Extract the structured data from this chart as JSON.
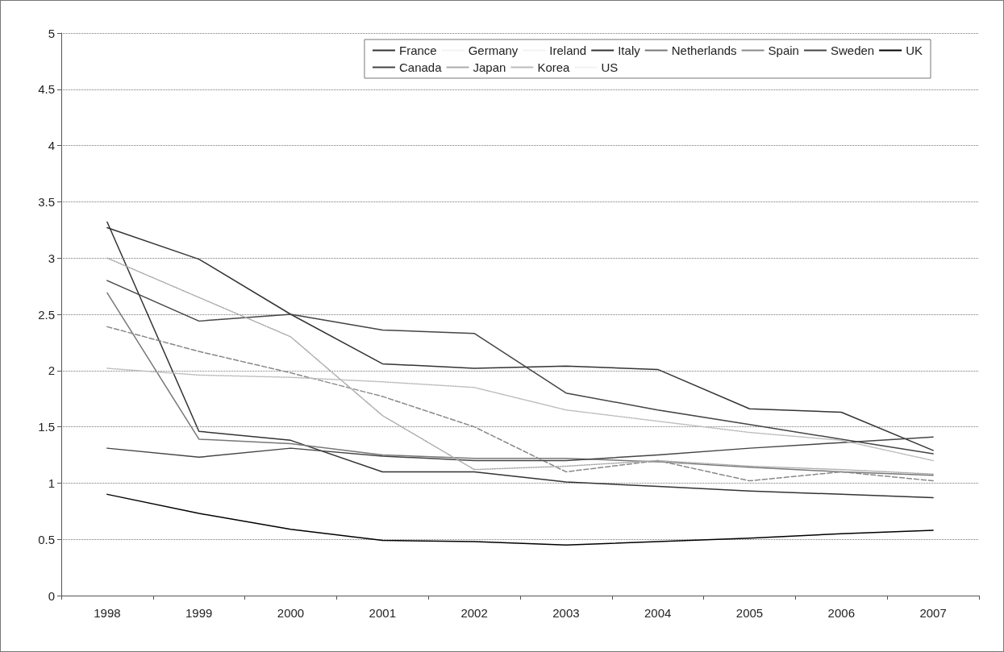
{
  "chart_data": {
    "type": "line",
    "categories": [
      "1998",
      "1999",
      "2000",
      "2001",
      "2002",
      "2003",
      "2004",
      "2005",
      "2006",
      "2007"
    ],
    "ylim": [
      0,
      5
    ],
    "yticks": [
      0,
      0.5,
      1,
      1.5,
      2,
      2.5,
      3,
      3.5,
      4,
      4.5,
      5
    ],
    "grid": "y",
    "legend": "top right",
    "marker": "none",
    "series": [
      {
        "name": "France",
        "color": "#333333",
        "values": [
          3.32,
          1.46,
          1.38,
          1.1,
          1.1,
          1.01,
          0.97,
          0.93,
          0.9,
          0.87
        ]
      },
      {
        "name": "Germany",
        "color": "#f2f2f2",
        "values": [
          null,
          null,
          null,
          null,
          null,
          null,
          null,
          null,
          null,
          null
        ]
      },
      {
        "name": "Ireland",
        "color": "#f2f2f2",
        "values": [
          null,
          null,
          null,
          null,
          null,
          null,
          null,
          null,
          null,
          null
        ]
      },
      {
        "name": "Italy",
        "color": "#333333",
        "values": [
          3.27,
          2.99,
          2.5,
          2.06,
          2.02,
          2.04,
          2.01,
          1.66,
          1.63,
          1.29
        ]
      },
      {
        "name": "Netherlands",
        "color": "#777777",
        "values": [
          2.69,
          1.39,
          1.35,
          1.25,
          1.22,
          1.22,
          1.19,
          1.14,
          1.1,
          1.07
        ]
      },
      {
        "name": "Spain",
        "color": "#888888",
        "line_style": "dashed",
        "values": [
          2.39,
          2.17,
          1.98,
          1.77,
          1.5,
          1.1,
          1.2,
          1.02,
          1.1,
          1.02
        ]
      },
      {
        "name": "Sweden",
        "color": "#444444",
        "values": [
          2.8,
          2.44,
          2.5,
          2.36,
          2.33,
          1.8,
          1.65,
          1.52,
          1.39,
          1.26
        ]
      },
      {
        "name": "UK",
        "color": "#000000",
        "values": [
          0.9,
          0.73,
          0.59,
          0.49,
          0.48,
          0.45,
          0.48,
          0.51,
          0.55,
          0.58
        ]
      },
      {
        "name": "Canada",
        "color": "#444444",
        "values": [
          1.31,
          1.23,
          1.31,
          1.24,
          1.2,
          1.2,
          1.25,
          1.31,
          1.36,
          1.41
        ]
      },
      {
        "name": "Japan",
        "color": "#aaaaaa",
        "line_style": "dotted",
        "values": [
          3.0,
          2.65,
          2.3,
          1.6,
          1.12,
          1.15,
          1.2,
          1.15,
          1.12,
          1.08
        ]
      },
      {
        "name": "Korea",
        "color": "#bbbbbb",
        "line_style": "dotted",
        "values": [
          2.02,
          1.96,
          1.94,
          1.9,
          1.85,
          1.65,
          1.55,
          1.45,
          1.38,
          1.2
        ]
      },
      {
        "name": "US",
        "color": "#f2f2f2",
        "values": [
          null,
          null,
          null,
          null,
          null,
          null,
          null,
          null,
          null,
          null
        ]
      }
    ]
  }
}
